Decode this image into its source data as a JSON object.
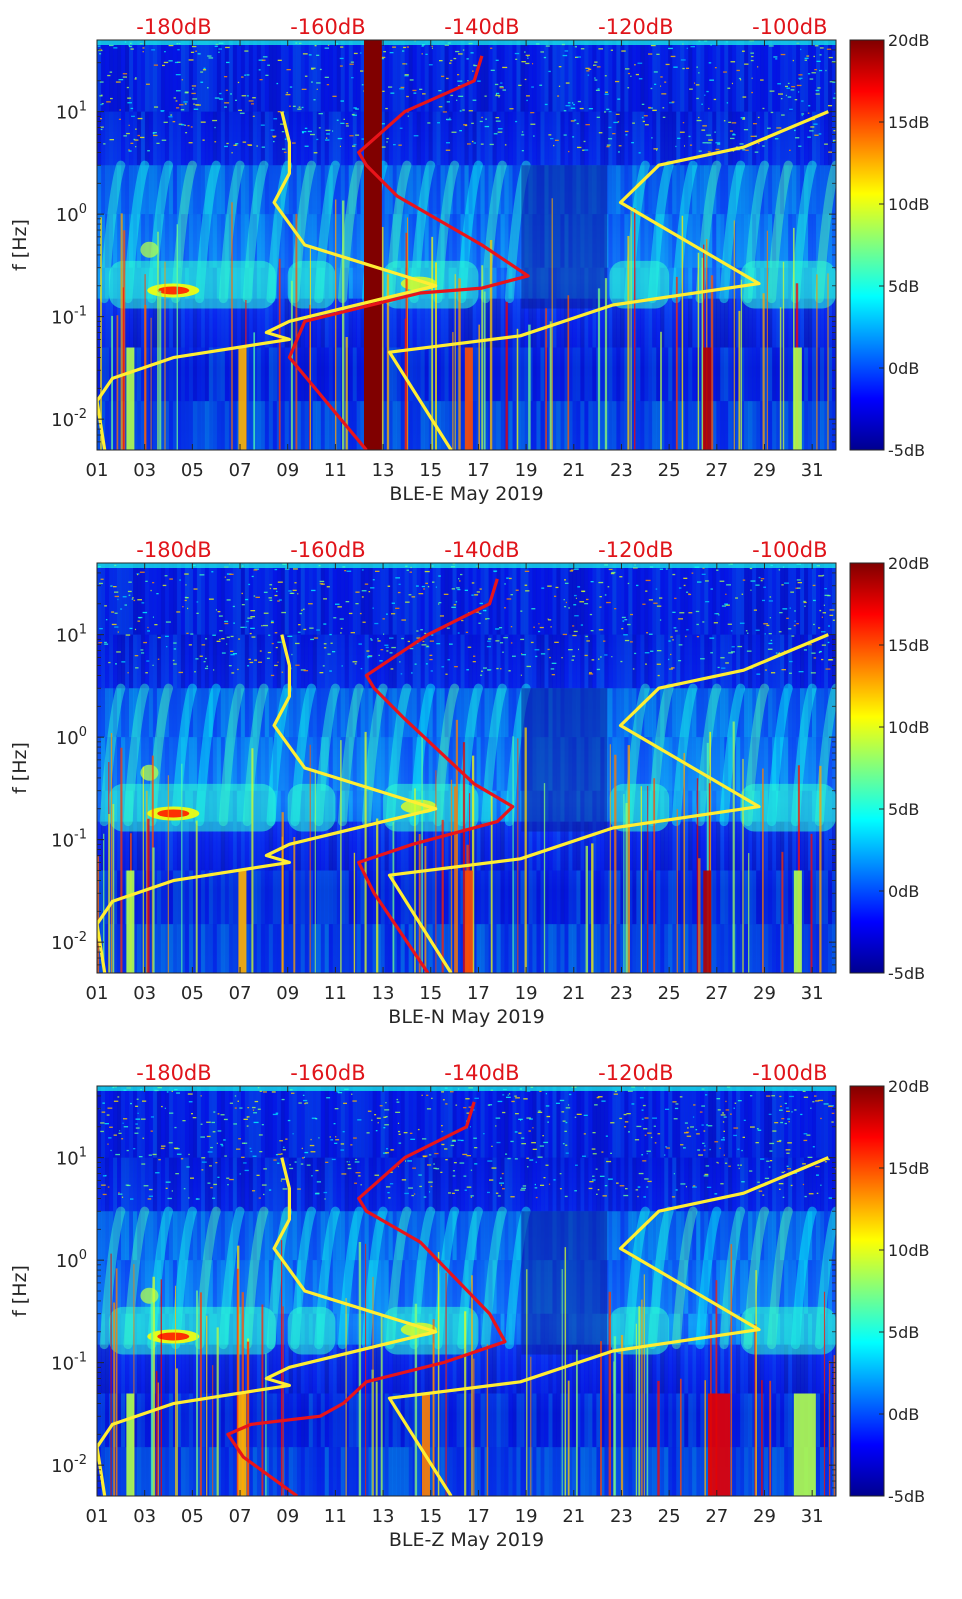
{
  "chart_data": [
    {
      "type": "heatmap",
      "xlabel": "BLE-E May 2019",
      "ylabel": "f [Hz]",
      "x_ticks": [
        "01",
        "03",
        "05",
        "07",
        "09",
        "11",
        "13",
        "15",
        "17",
        "19",
        "21",
        "23",
        "25",
        "27",
        "29",
        "31"
      ],
      "x_range_days": [
        1,
        32
      ],
      "y_scale": "log",
      "y_range_hz": [
        0.005,
        50
      ],
      "y_ticks": [
        {
          "v": 0.01,
          "b": "10",
          "e": "-2"
        },
        {
          "v": 0.1,
          "b": "10",
          "e": "-1"
        },
        {
          "v": 1,
          "b": "10",
          "e": "0"
        },
        {
          "v": 10,
          "b": "10",
          "e": "1"
        }
      ],
      "top_axis_ticks": [
        "-180dB",
        "-160dB",
        "-140dB",
        "-120dB",
        "-100dB"
      ],
      "top_axis_range_db": [
        -190,
        -94
      ],
      "colorbar": {
        "ticks": [
          "20dB",
          "15dB",
          "10dB",
          "5dB",
          "0dB",
          "-5dB"
        ],
        "range_db": [
          -5,
          20
        ]
      },
      "series": [
        {
          "color": "#ffee33",
          "top_axis_db_vs_f": [
            [
              -189,
              0.005
            ],
            [
              -190,
              0.015
            ],
            [
              -188,
              0.025
            ],
            [
              -180,
              0.04
            ],
            [
              -165,
              0.06
            ],
            [
              -168,
              0.07
            ],
            [
              -165,
              0.09
            ],
            [
              -146,
              0.2
            ],
            [
              -163,
              0.5
            ],
            [
              -167,
              1.3
            ],
            [
              -165,
              2.5
            ],
            [
              -165,
              5
            ],
            [
              -166,
              10
            ]
          ]
        },
        {
          "color": "#ffee33",
          "top_axis_db_vs_f": [
            [
              -144,
              0.005
            ],
            [
              -152,
              0.045
            ],
            [
              -135,
              0.065
            ],
            [
              -123,
              0.13
            ],
            [
              -104,
              0.21
            ],
            [
              -122,
              1.3
            ],
            [
              -117,
              3
            ],
            [
              -106,
              4.5
            ],
            [
              -95,
              10
            ]
          ]
        },
        {
          "color": "#e8141a",
          "top_axis_db_vs_f": [
            [
              -155,
              0.005
            ],
            [
              -165,
              0.04
            ],
            [
              -163,
              0.09
            ],
            [
              -148,
              0.17
            ],
            [
              -140,
              0.19
            ],
            [
              -134,
              0.25
            ],
            [
              -140,
              0.5
            ],
            [
              -151,
              1.5
            ],
            [
              -155,
              3
            ],
            [
              -156,
              4
            ],
            [
              -150,
              10
            ],
            [
              -141,
              20
            ],
            [
              -140,
              35
            ]
          ]
        }
      ]
    },
    {
      "type": "heatmap",
      "xlabel": "BLE-N May 2019",
      "ylabel": "f [Hz]",
      "x_ticks": [
        "01",
        "03",
        "05",
        "07",
        "09",
        "11",
        "13",
        "15",
        "17",
        "19",
        "21",
        "23",
        "25",
        "27",
        "29",
        "31"
      ],
      "x_range_days": [
        1,
        32
      ],
      "y_scale": "log",
      "y_range_hz": [
        0.005,
        50
      ],
      "y_ticks": [
        {
          "v": 0.01,
          "b": "10",
          "e": "-2"
        },
        {
          "v": 0.1,
          "b": "10",
          "e": "-1"
        },
        {
          "v": 1,
          "b": "10",
          "e": "0"
        },
        {
          "v": 10,
          "b": "10",
          "e": "1"
        }
      ],
      "top_axis_ticks": [
        "-180dB",
        "-160dB",
        "-140dB",
        "-120dB",
        "-100dB"
      ],
      "top_axis_range_db": [
        -190,
        -94
      ],
      "colorbar": {
        "ticks": [
          "20dB",
          "15dB",
          "10dB",
          "5dB",
          "0dB",
          "-5dB"
        ],
        "range_db": [
          -5,
          20
        ]
      },
      "series": [
        {
          "color": "#ffee33",
          "top_axis_db_vs_f": [
            [
              -189,
              0.005
            ],
            [
              -190,
              0.015
            ],
            [
              -188,
              0.025
            ],
            [
              -180,
              0.04
            ],
            [
              -165,
              0.06
            ],
            [
              -168,
              0.07
            ],
            [
              -165,
              0.09
            ],
            [
              -146,
              0.2
            ],
            [
              -163,
              0.5
            ],
            [
              -167,
              1.3
            ],
            [
              -165,
              2.5
            ],
            [
              -165,
              5
            ],
            [
              -166,
              10
            ]
          ]
        },
        {
          "color": "#ffee33",
          "top_axis_db_vs_f": [
            [
              -144,
              0.005
            ],
            [
              -152,
              0.045
            ],
            [
              -135,
              0.065
            ],
            [
              -123,
              0.13
            ],
            [
              -104,
              0.21
            ],
            [
              -122,
              1.3
            ],
            [
              -117,
              3
            ],
            [
              -106,
              4.5
            ],
            [
              -95,
              10
            ]
          ]
        },
        {
          "color": "#e8141a",
          "top_axis_db_vs_f": [
            [
              -147,
              0.005
            ],
            [
              -154,
              0.03
            ],
            [
              -156,
              0.06
            ],
            [
              -149,
              0.09
            ],
            [
              -138,
              0.15
            ],
            [
              -136,
              0.21
            ],
            [
              -141,
              0.35
            ],
            [
              -150,
              1.5
            ],
            [
              -154,
              3
            ],
            [
              -155,
              4
            ],
            [
              -147,
              10
            ],
            [
              -139,
              20
            ],
            [
              -138,
              35
            ]
          ]
        }
      ]
    },
    {
      "type": "heatmap",
      "xlabel": "BLE-Z May 2019",
      "ylabel": "f [Hz]",
      "x_ticks": [
        "01",
        "03",
        "05",
        "07",
        "09",
        "11",
        "13",
        "15",
        "17",
        "19",
        "21",
        "23",
        "25",
        "27",
        "29",
        "31"
      ],
      "x_range_days": [
        1,
        32
      ],
      "y_scale": "log",
      "y_range_hz": [
        0.005,
        50
      ],
      "y_ticks": [
        {
          "v": 0.01,
          "b": "10",
          "e": "-2"
        },
        {
          "v": 0.1,
          "b": "10",
          "e": "-1"
        },
        {
          "v": 1,
          "b": "10",
          "e": "0"
        },
        {
          "v": 10,
          "b": "10",
          "e": "1"
        }
      ],
      "top_axis_ticks": [
        "-180dB",
        "-160dB",
        "-140dB",
        "-120dB",
        "-100dB"
      ],
      "top_axis_range_db": [
        -190,
        -94
      ],
      "colorbar": {
        "ticks": [
          "20dB",
          "15dB",
          "10dB",
          "5dB",
          "0dB",
          "-5dB"
        ],
        "range_db": [
          -5,
          20
        ]
      },
      "series": [
        {
          "color": "#ffee33",
          "top_axis_db_vs_f": [
            [
              -189,
              0.005
            ],
            [
              -190,
              0.015
            ],
            [
              -188,
              0.025
            ],
            [
              -180,
              0.04
            ],
            [
              -165,
              0.06
            ],
            [
              -168,
              0.07
            ],
            [
              -165,
              0.09
            ],
            [
              -146,
              0.2
            ],
            [
              -163,
              0.5
            ],
            [
              -167,
              1.3
            ],
            [
              -165,
              2.5
            ],
            [
              -165,
              5
            ],
            [
              -166,
              10
            ]
          ]
        },
        {
          "color": "#ffee33",
          "top_axis_db_vs_f": [
            [
              -144,
              0.005
            ],
            [
              -152,
              0.045
            ],
            [
              -135,
              0.065
            ],
            [
              -123,
              0.13
            ],
            [
              -104,
              0.21
            ],
            [
              -122,
              1.3
            ],
            [
              -117,
              3
            ],
            [
              -106,
              4.5
            ],
            [
              -95,
              10
            ]
          ]
        },
        {
          "color": "#e8141a",
          "top_axis_db_vs_f": [
            [
              -164,
              0.005
            ],
            [
              -171,
              0.012
            ],
            [
              -173,
              0.02
            ],
            [
              -170,
              0.025
            ],
            [
              -161,
              0.03
            ],
            [
              -158,
              0.04
            ],
            [
              -155,
              0.065
            ],
            [
              -145,
              0.1
            ],
            [
              -137,
              0.16
            ],
            [
              -139,
              0.3
            ],
            [
              -148,
              1.5
            ],
            [
              -155,
              3
            ],
            [
              -156,
              4
            ],
            [
              -150,
              10
            ],
            [
              -142,
              20
            ],
            [
              -141,
              35
            ]
          ]
        }
      ]
    }
  ]
}
